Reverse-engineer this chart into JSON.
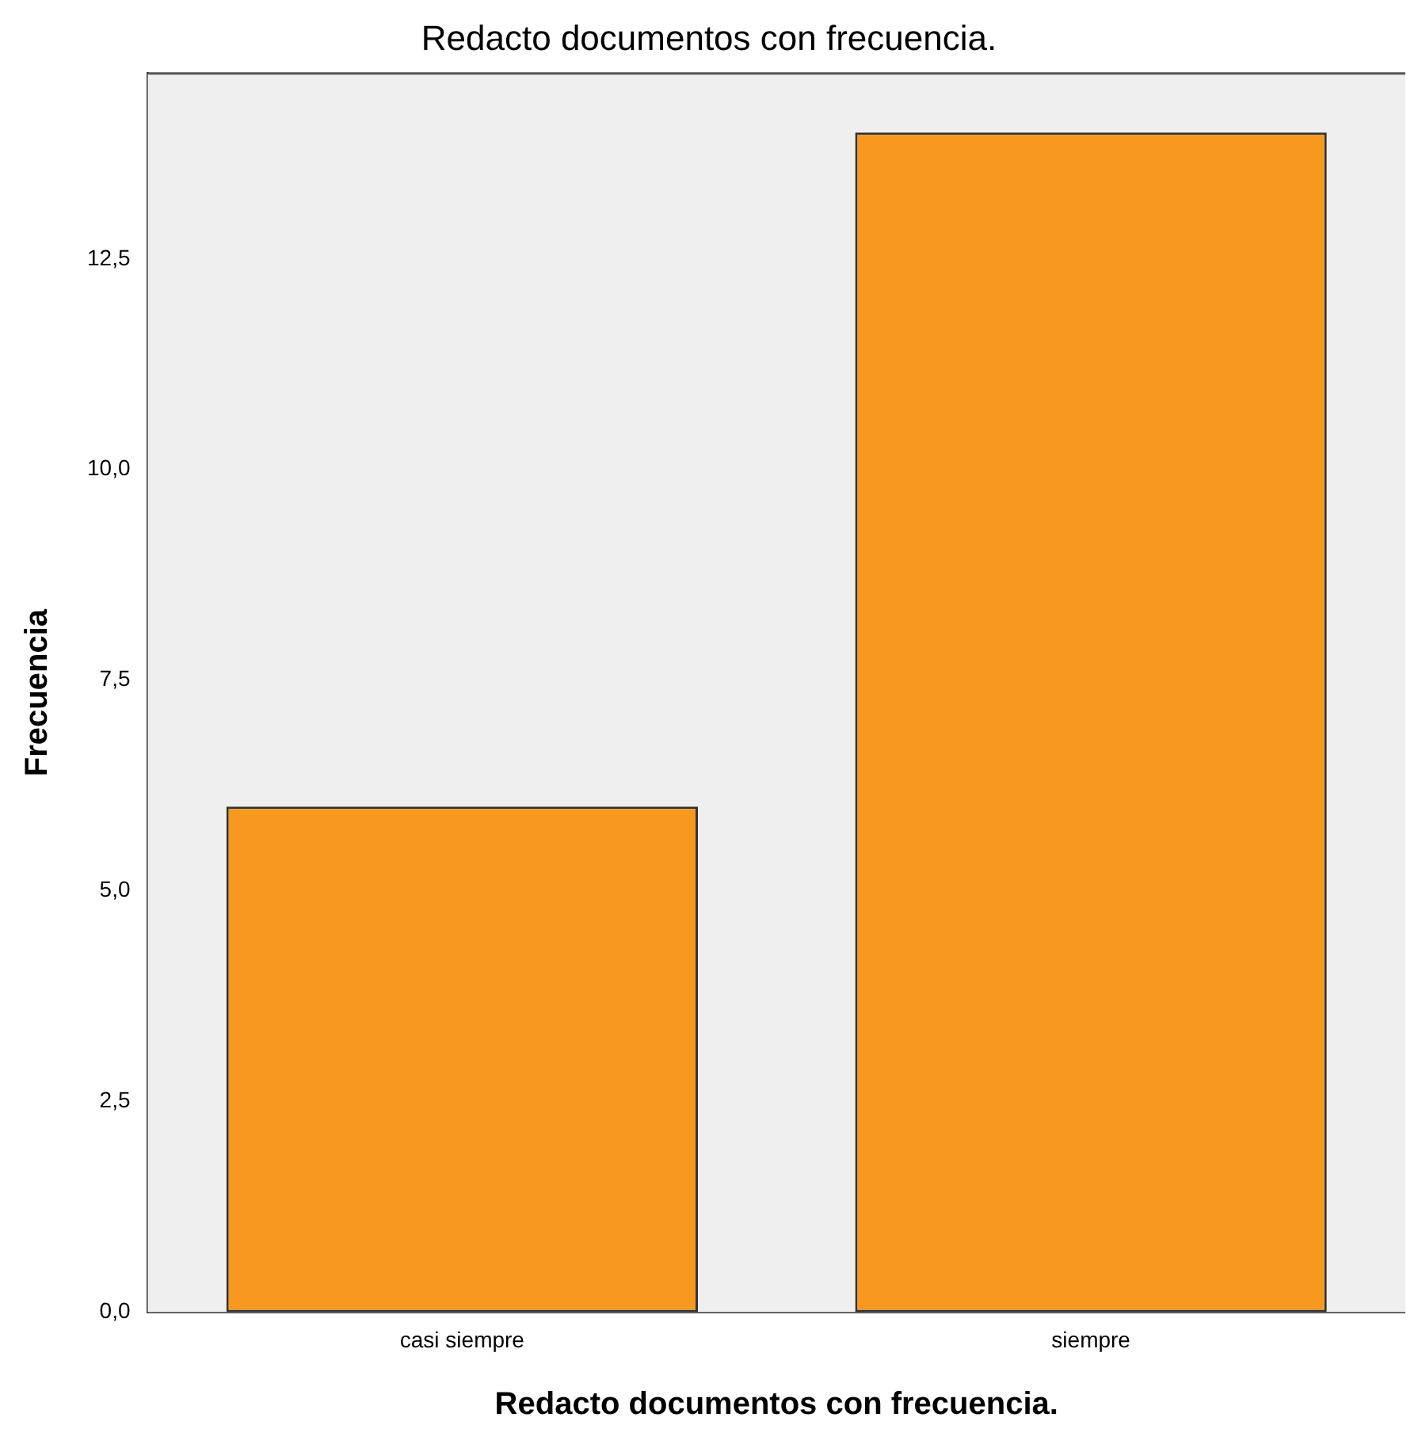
{
  "chart_data": {
    "type": "bar",
    "title": "Redacto documentos con frecuencia.",
    "xlabel": "Redacto documentos con frecuencia.",
    "ylabel": "Frecuencia",
    "categories": [
      "casi siempre",
      "siempre"
    ],
    "values": [
      6,
      14
    ],
    "color": "#f7991f",
    "ylim": [
      0,
      14.7
    ],
    "yticks": [
      {
        "value": 0,
        "label": "0,0"
      },
      {
        "value": 2.5,
        "label": "2,5"
      },
      {
        "value": 5,
        "label": "5,0"
      },
      {
        "value": 7.5,
        "label": "7,5"
      },
      {
        "value": 10,
        "label": "10,0"
      },
      {
        "value": 12.5,
        "label": "12,5"
      }
    ],
    "grid": false,
    "legend": false
  }
}
